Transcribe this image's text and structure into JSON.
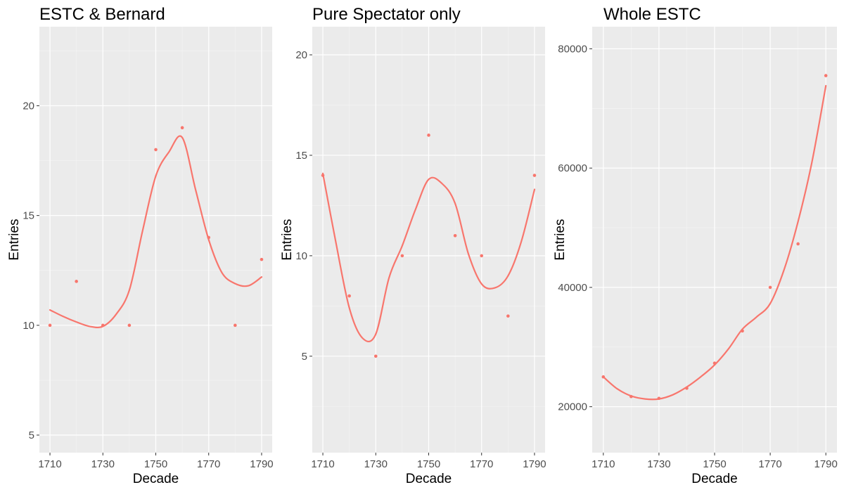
{
  "chart_data": [
    {
      "type": "scatter",
      "title": "ESTC & Bernard",
      "xlabel": "Decade",
      "ylabel": "Entries",
      "xlim": [
        1706,
        1794
      ],
      "ylim": [
        4.2,
        23.6
      ],
      "xticks": [
        1710,
        1730,
        1750,
        1770,
        1790
      ],
      "yticks": [
        5,
        10,
        15,
        20
      ],
      "series": [
        {
          "x": [
            1710,
            1720,
            1730,
            1740,
            1750,
            1760,
            1770,
            1780,
            1790
          ],
          "values": [
            10,
            12,
            10,
            10,
            18,
            19,
            14,
            10,
            13
          ]
        }
      ],
      "smooth": {
        "x": [
          1710,
          1715,
          1720,
          1725,
          1730,
          1735,
          1740,
          1745,
          1750,
          1755,
          1760,
          1765,
          1770,
          1775,
          1780,
          1785,
          1790
        ],
        "y": [
          10.7,
          10.4,
          10.15,
          9.95,
          9.95,
          10.5,
          11.6,
          14.3,
          16.8,
          17.9,
          18.55,
          16.2,
          13.9,
          12.4,
          11.9,
          11.8,
          12.2
        ]
      },
      "color": "#f8766d",
      "grid": true
    },
    {
      "type": "scatter",
      "title": "Pure Spectator only",
      "xlabel": "Decade",
      "ylabel": "Entries",
      "xlim": [
        1706,
        1794
      ],
      "ylim": [
        0.2,
        21.4
      ],
      "xticks": [
        1710,
        1730,
        1750,
        1770,
        1790
      ],
      "yticks": [
        5,
        10,
        15,
        20
      ],
      "series": [
        {
          "x": [
            1710,
            1720,
            1730,
            1740,
            1750,
            1760,
            1770,
            1780,
            1790
          ],
          "values": [
            14,
            8,
            5,
            10,
            16,
            11,
            10,
            7,
            14
          ]
        }
      ],
      "smooth": {
        "x": [
          1710,
          1715,
          1720,
          1725,
          1730,
          1735,
          1740,
          1745,
          1750,
          1755,
          1760,
          1765,
          1770,
          1775,
          1780,
          1785,
          1790
        ],
        "y": [
          14.1,
          10.6,
          7.4,
          5.9,
          6.1,
          8.9,
          10.5,
          12.3,
          13.8,
          13.6,
          12.6,
          10.1,
          8.6,
          8.4,
          9.0,
          10.7,
          13.3
        ]
      },
      "color": "#f8766d",
      "grid": true
    },
    {
      "type": "scatter",
      "title": "Whole ESTC",
      "xlabel": "Decade",
      "ylabel": "Entries",
      "xlim": [
        1706,
        1794
      ],
      "ylim": [
        12300,
        83700
      ],
      "xticks": [
        1710,
        1730,
        1750,
        1770,
        1790
      ],
      "yticks": [
        20000,
        40000,
        60000,
        80000
      ],
      "series": [
        {
          "x": [
            1710,
            1720,
            1730,
            1740,
            1750,
            1760,
            1770,
            1780,
            1790
          ],
          "values": [
            25000,
            21700,
            21400,
            23100,
            27300,
            32700,
            40000,
            47300,
            75500
          ]
        }
      ],
      "smooth": {
        "x": [
          1710,
          1715,
          1720,
          1725,
          1730,
          1735,
          1740,
          1745,
          1750,
          1755,
          1760,
          1765,
          1770,
          1775,
          1780,
          1785,
          1790
        ],
        "y": [
          25000,
          23000,
          21800,
          21300,
          21300,
          22000,
          23300,
          25000,
          27000,
          29700,
          33000,
          35000,
          37300,
          43000,
          51000,
          61000,
          73800
        ]
      },
      "color": "#f8766d",
      "grid": true
    }
  ]
}
